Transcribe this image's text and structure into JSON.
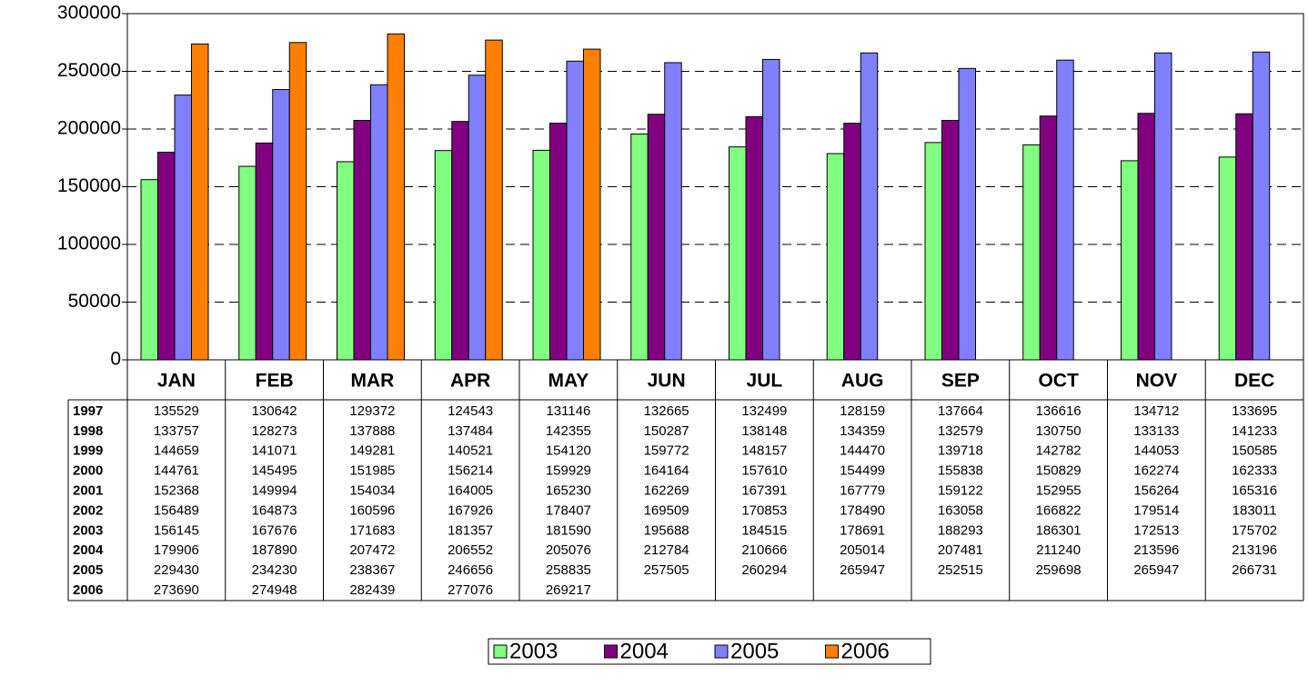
{
  "chart_data": {
    "type": "bar",
    "categories": [
      "JAN",
      "FEB",
      "MAR",
      "APR",
      "MAY",
      "JUN",
      "JUL",
      "AUG",
      "SEP",
      "OCT",
      "NOV",
      "DEC"
    ],
    "series": [
      {
        "name": "1997",
        "values": [
          135529,
          130642,
          129372,
          124543,
          131146,
          132665,
          132499,
          128159,
          137664,
          136616,
          134712,
          133695
        ]
      },
      {
        "name": "1998",
        "values": [
          133757,
          128273,
          137888,
          137484,
          142355,
          150287,
          138148,
          134359,
          132579,
          130750,
          133133,
          141233
        ]
      },
      {
        "name": "1999",
        "values": [
          144659,
          141071,
          149281,
          140521,
          154120,
          159772,
          148157,
          144470,
          139718,
          142782,
          144053,
          150585
        ]
      },
      {
        "name": "2000",
        "values": [
          144761,
          145495,
          151985,
          156214,
          159929,
          164164,
          157610,
          154499,
          155838,
          150829,
          162274,
          162333
        ]
      },
      {
        "name": "2001",
        "values": [
          152368,
          149994,
          154034,
          164005,
          165230,
          162269,
          167391,
          167779,
          159122,
          152955,
          156264,
          165316
        ]
      },
      {
        "name": "2002",
        "values": [
          156489,
          164873,
          160596,
          167926,
          178407,
          169509,
          170853,
          178490,
          163058,
          166822,
          179514,
          183011
        ]
      },
      {
        "name": "2003",
        "color": "#80ff80",
        "values": [
          156145,
          167676,
          171683,
          181357,
          181590,
          195688,
          184515,
          178691,
          188293,
          186301,
          172513,
          175702
        ]
      },
      {
        "name": "2004",
        "color": "#800080",
        "values": [
          179906,
          187890,
          207472,
          206552,
          205076,
          212784,
          210666,
          205014,
          207481,
          211240,
          213596,
          213196
        ]
      },
      {
        "name": "2005",
        "color": "#8080ff",
        "values": [
          229430,
          234230,
          238367,
          246656,
          258835,
          257505,
          260294,
          265947,
          252515,
          259698,
          265947,
          266731
        ]
      },
      {
        "name": "2006",
        "color": "#ff8000",
        "values": [
          273690,
          274948,
          282439,
          277076,
          269217,
          null,
          null,
          null,
          null,
          null,
          null,
          null
        ]
      }
    ],
    "ylim": [
      0,
      300000
    ],
    "yticks": [
      0,
      50000,
      100000,
      150000,
      200000,
      250000,
      300000
    ],
    "grid": true,
    "legend": "bottom"
  }
}
